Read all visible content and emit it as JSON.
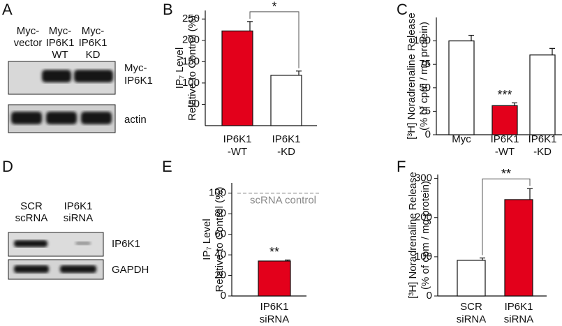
{
  "panel_letters": [
    "A",
    "B",
    "C",
    "D",
    "E",
    "F"
  ],
  "blots": [
    {
      "lanes": [
        [
          "Myc-",
          "vector"
        ],
        [
          "Myc-",
          "IP6K1",
          "WT"
        ],
        [
          "Myc-",
          "IP6K1",
          "KD"
        ]
      ],
      "rows": [
        [
          "Myc-",
          "IP6K1"
        ],
        [
          "actin"
        ]
      ]
    },
    {
      "lanes": [
        [
          "SCR",
          "scRNA"
        ],
        [
          "IP6K1",
          "siRNA"
        ]
      ],
      "rows": [
        [
          "IP6K1"
        ],
        [
          "GAPDH"
        ]
      ]
    }
  ],
  "chart_data": [
    {
      "type": "bar",
      "ylabel": [
        "IP₇ Level",
        "Relative to Control (%)"
      ],
      "categories": [
        [
          "IP6K1",
          "-WT"
        ],
        [
          "IP6K1",
          "-KD"
        ]
      ],
      "values": [
        222,
        118
      ],
      "errors": [
        22,
        10
      ],
      "colors": [
        "#e3001b",
        "#ffffff"
      ],
      "ylim": [
        0,
        270
      ],
      "yticks": [
        50,
        100,
        150,
        200,
        250
      ],
      "comparison": "*"
    },
    {
      "type": "bar",
      "ylabel": [
        "[³H] Noradrenaline Release",
        "(% of cpm / mg protein)"
      ],
      "categories": [
        [
          "Myc"
        ],
        [
          "IP6K1",
          "-WT"
        ],
        [
          "IP6K1",
          "-KD"
        ]
      ],
      "values": [
        100,
        31,
        85
      ],
      "errors": [
        6,
        3,
        7
      ],
      "colors": [
        "#ffffff",
        "#e3001b",
        "#ffffff"
      ],
      "ylim": [
        0,
        125
      ],
      "yticks": [
        0,
        25,
        50,
        75,
        100
      ],
      "value_annotations": [
        null,
        "***",
        null
      ]
    },
    {
      "type": "bar",
      "ylabel": [
        "IP₇ Level",
        "Relative to Control (%)"
      ],
      "categories": [
        [
          "IP6K1",
          "siRNA"
        ]
      ],
      "values": [
        34
      ],
      "errors": [
        1
      ],
      "colors": [
        "#e3001b"
      ],
      "ylim": [
        0,
        110
      ],
      "yticks": [
        0,
        20,
        40,
        60,
        80,
        100
      ],
      "value_annotations": [
        "**"
      ],
      "reference": {
        "value": 100,
        "label": "scRNA control"
      }
    },
    {
      "type": "bar",
      "ylabel": [
        "[³H] Noradrenaline Release",
        "(% of cpm / mg protein)"
      ],
      "categories": [
        [
          "SCR",
          "siRNA"
        ],
        [
          "IP6K1",
          "siRNA"
        ]
      ],
      "values": [
        91,
        246
      ],
      "errors": [
        6,
        28
      ],
      "colors": [
        "#ffffff",
        "#e3001b"
      ],
      "ylim": [
        0,
        310
      ],
      "yticks": [
        0,
        100,
        200,
        300
      ],
      "comparison": "**"
    }
  ]
}
